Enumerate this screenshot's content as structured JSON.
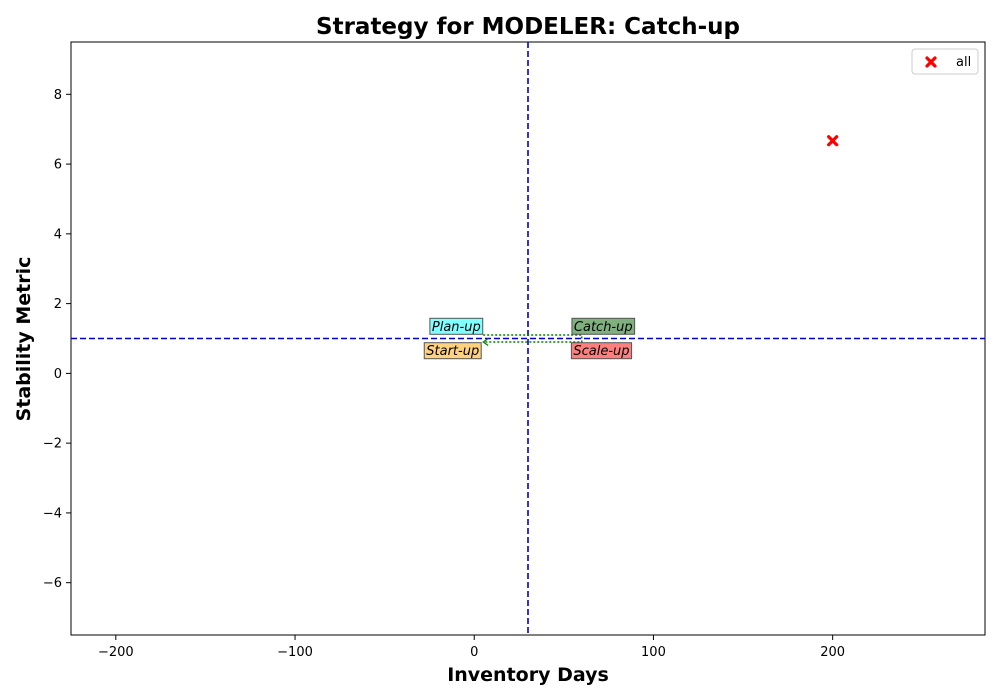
{
  "chart_data": {
    "type": "scatter",
    "title": "Strategy for MODELER: Catch-up",
    "xlabel": "Inventory Days",
    "ylabel": "Stability Metric",
    "xlim": [
      -225,
      285
    ],
    "ylim": [
      -7.5,
      9.5
    ],
    "xticks": [
      -200,
      -100,
      0,
      100,
      200
    ],
    "yticks": [
      -6,
      -4,
      -2,
      0,
      2,
      4,
      6,
      8
    ],
    "xtick_labels": [
      "−200",
      "−100",
      "0",
      "100",
      "200"
    ],
    "ytick_labels": [
      "−6",
      "−4",
      "−2",
      "0",
      "2",
      "4",
      "6",
      "8"
    ],
    "grid": false,
    "legend_position": "top-right",
    "series": [
      {
        "name": "all",
        "marker": "x",
        "color": "#ff0000",
        "points": [
          {
            "x": 200,
            "y": 6.67
          }
        ]
      }
    ],
    "reference_lines": {
      "vertical_x": 30,
      "horizontal_y": 1,
      "color": "#0000cc",
      "style": "dashed"
    },
    "path": {
      "color": "#008000",
      "style": "dotted",
      "points": [
        {
          "x": 5,
          "y": 1.1
        },
        {
          "x": 60,
          "y": 1.1
        },
        {
          "x": 60,
          "y": 0.9
        },
        {
          "x": 5,
          "y": 0.9
        }
      ]
    },
    "quadrant_labels": [
      {
        "text": "Plan-up",
        "x": -10,
        "y": 1.35,
        "color": "#00ffff"
      },
      {
        "text": "Catch-up",
        "x": 72,
        "y": 1.35,
        "color": "#006400"
      },
      {
        "text": "Start-up",
        "x": -12,
        "y": 0.65,
        "color": "#ffa500"
      },
      {
        "text": "Scale-up",
        "x": 71,
        "y": 0.65,
        "color": "#ff0000"
      }
    ]
  }
}
